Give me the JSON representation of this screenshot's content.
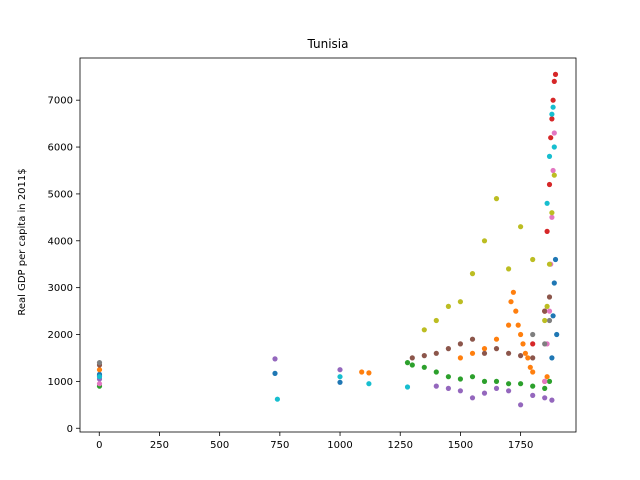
{
  "chart_data": {
    "type": "scatter",
    "title": "Tunisia",
    "xlabel": "",
    "ylabel": "Real GDP per capita in 2011$",
    "xlim": [
      -80,
      1980
    ],
    "ylim": [
      -80,
      7900
    ],
    "xticks": [
      0,
      250,
      500,
      750,
      1000,
      1250,
      1500,
      1750
    ],
    "yticks": [
      0,
      1000,
      2000,
      3000,
      4000,
      5000,
      6000,
      7000
    ],
    "grid": false,
    "colors": [
      "#1f77b4",
      "#ff7f0e",
      "#2ca02c",
      "#d62728",
      "#9467bd",
      "#8c564b",
      "#e377c2",
      "#7f7f7f",
      "#bcbd22",
      "#17becf"
    ],
    "series": [
      {
        "color": "#1f77b4",
        "x": [
          1,
          1,
          730,
          1000,
          1880,
          1885,
          1890,
          1895,
          1900
        ],
        "y": [
          1120,
          1150,
          1170,
          980,
          1500,
          2400,
          3100,
          3600,
          2000
        ]
      },
      {
        "color": "#ff7f0e",
        "x": [
          1,
          1090,
          1120,
          1500,
          1550,
          1600,
          1650,
          1700,
          1710,
          1720,
          1730,
          1740,
          1750,
          1760,
          1770,
          1780,
          1790,
          1800,
          1850,
          1860
        ],
        "y": [
          1250,
          1200,
          1180,
          1500,
          1600,
          1700,
          1900,
          2200,
          2700,
          2900,
          2500,
          2200,
          2000,
          1800,
          1600,
          1500,
          1300,
          1200,
          1000,
          1100
        ]
      },
      {
        "color": "#2ca02c",
        "x": [
          1,
          1280,
          1300,
          1350,
          1400,
          1450,
          1500,
          1550,
          1600,
          1650,
          1700,
          1750,
          1800,
          1850,
          1870
        ],
        "y": [
          900,
          1400,
          1350,
          1300,
          1200,
          1100,
          1050,
          1100,
          1000,
          1000,
          950,
          950,
          900,
          850,
          1000
        ]
      },
      {
        "color": "#d62728",
        "x": [
          1800,
          1850,
          1860,
          1870,
          1875,
          1880,
          1885,
          1890,
          1895
        ],
        "y": [
          1800,
          2500,
          4200,
          5200,
          6200,
          6600,
          7000,
          7400,
          7550
        ]
      },
      {
        "color": "#9467bd",
        "x": [
          1,
          730,
          1000,
          1400,
          1450,
          1500,
          1550,
          1600,
          1650,
          1700,
          1750,
          1800,
          1850,
          1880
        ],
        "y": [
          1050,
          1480,
          1250,
          900,
          850,
          800,
          650,
          750,
          850,
          800,
          500,
          700,
          650,
          600
        ]
      },
      {
        "color": "#8c564b",
        "x": [
          1,
          1300,
          1350,
          1400,
          1450,
          1500,
          1550,
          1600,
          1650,
          1700,
          1750,
          1800,
          1850,
          1870
        ],
        "y": [
          1350,
          1500,
          1550,
          1600,
          1700,
          1800,
          1900,
          1600,
          1700,
          1600,
          1550,
          1500,
          2500,
          2800
        ]
      },
      {
        "color": "#e377c2",
        "x": [
          1,
          1850,
          1860,
          1870,
          1875,
          1880,
          1885,
          1890
        ],
        "y": [
          950,
          1000,
          1800,
          2500,
          3500,
          4500,
          5500,
          6300
        ]
      },
      {
        "color": "#7f7f7f",
        "x": [
          1,
          1800,
          1850,
          1870
        ],
        "y": [
          1400,
          2000,
          1800,
          2300
        ]
      },
      {
        "color": "#bcbd22",
        "x": [
          1350,
          1400,
          1450,
          1500,
          1550,
          1600,
          1650,
          1700,
          1750,
          1800,
          1850,
          1860,
          1870,
          1880,
          1890
        ],
        "y": [
          2100,
          2300,
          2600,
          2700,
          3300,
          4000,
          4900,
          3400,
          4300,
          3600,
          2300,
          2600,
          3500,
          4600,
          5400
        ]
      },
      {
        "color": "#17becf",
        "x": [
          1,
          740,
          1000,
          1120,
          1280,
          1860,
          1870,
          1880,
          1885,
          1890
        ],
        "y": [
          1100,
          620,
          1100,
          950,
          880,
          4800,
          5800,
          6700,
          6850,
          6000
        ]
      }
    ]
  }
}
